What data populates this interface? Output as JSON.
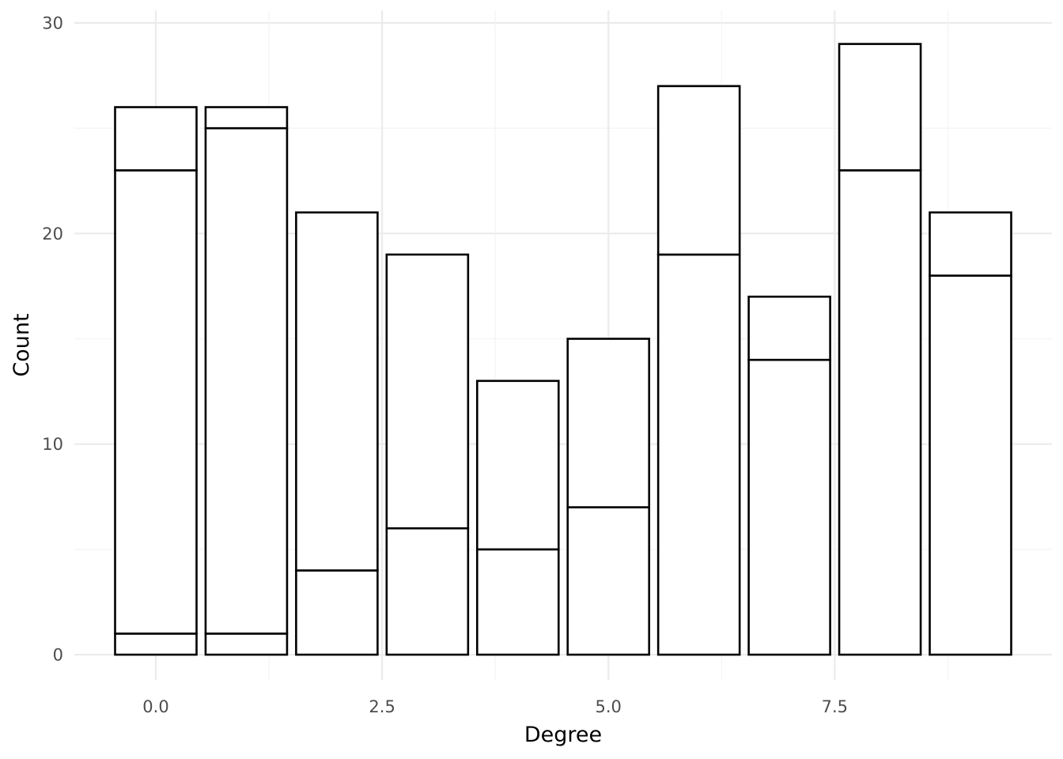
{
  "chart_data": {
    "type": "bar",
    "stacked": true,
    "title": "",
    "xlabel": "Degree",
    "ylabel": "Count",
    "xlim": [
      -0.9,
      9.9
    ],
    "ylim": [
      -1.2,
      30.6
    ],
    "x_ticks": [
      0.0,
      2.5,
      5.0,
      7.5
    ],
    "x_tick_labels": [
      "0.0",
      "2.5",
      "5.0",
      "7.5"
    ],
    "y_ticks": [
      0,
      10,
      20,
      30
    ],
    "y_tick_labels": [
      "0",
      "10",
      "20",
      "30"
    ],
    "grid": true,
    "legend": "none",
    "bar_width": 0.9,
    "fill_color": "#ffffff",
    "outline_color": "#000000",
    "bars": [
      {
        "x": 0,
        "segments": [
          1,
          22,
          3
        ],
        "total": 26
      },
      {
        "x": 1,
        "segments": [
          1,
          24,
          1
        ],
        "total": 26
      },
      {
        "x": 2,
        "segments": [
          4,
          17
        ],
        "total": 21
      },
      {
        "x": 3,
        "segments": [
          6,
          13
        ],
        "total": 19
      },
      {
        "x": 4,
        "segments": [
          5,
          8
        ],
        "total": 13
      },
      {
        "x": 5,
        "segments": [
          7,
          8
        ],
        "total": 15
      },
      {
        "x": 6,
        "segments": [
          19,
          8
        ],
        "total": 27
      },
      {
        "x": 7,
        "segments": [
          14,
          3
        ],
        "total": 17
      },
      {
        "x": 8,
        "segments": [
          23,
          6
        ],
        "total": 29
      },
      {
        "x": 9,
        "segments": [
          18,
          3
        ],
        "total": 21
      }
    ]
  }
}
